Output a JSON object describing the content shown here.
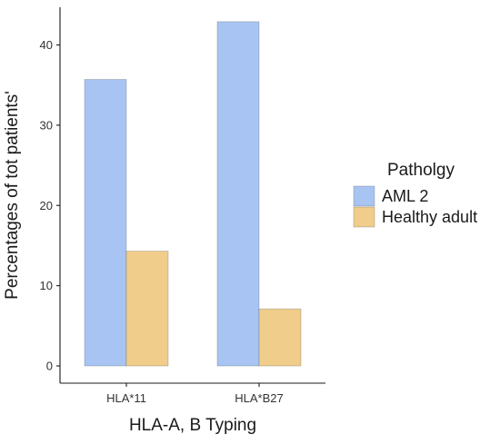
{
  "chart_data": {
    "type": "bar",
    "xlabel": "HLA-A, B Typing",
    "ylabel": "Percentages of tot  patients'",
    "categories": [
      "HLA*11",
      "HLA*B27"
    ],
    "ylim": [
      0,
      45
    ],
    "yticks": [
      0,
      10,
      20,
      30,
      40
    ],
    "grid": false,
    "legend": {
      "title": "Patholgy",
      "placement": "right"
    },
    "series": [
      {
        "name": "AML 2",
        "color": "#A7C4F2",
        "values": [
          35.7,
          42.9
        ]
      },
      {
        "name": "Healthy adult",
        "color": "#F0CD8A",
        "values": [
          14.3,
          7.1
        ]
      }
    ]
  }
}
